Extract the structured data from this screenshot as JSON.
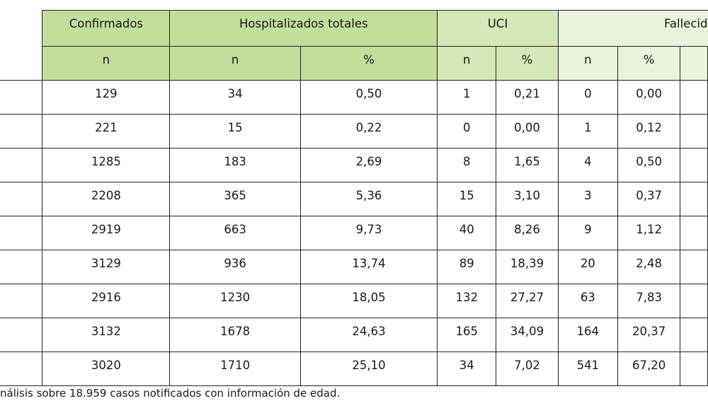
{
  "table": {
    "headers": {
      "confirmados": "Confirmados",
      "hospitalizados": "Hospitalizados totales",
      "uci": "UCI",
      "fallecidos": "Fallecid"
    },
    "subheaders": [
      "n",
      "n",
      "%",
      "n",
      "%",
      "n",
      "%"
    ],
    "rows": [
      [
        "129",
        "34",
        "0,50",
        "1",
        "0,21",
        "0",
        "0,00"
      ],
      [
        "221",
        "15",
        "0,22",
        "0",
        "0,00",
        "1",
        "0,12"
      ],
      [
        "1285",
        "183",
        "2,69",
        "8",
        "1,65",
        "4",
        "0,50"
      ],
      [
        "2208",
        "365",
        "5,36",
        "15",
        "3,10",
        "3",
        "0,37"
      ],
      [
        "2919",
        "663",
        "9,73",
        "40",
        "8,26",
        "9",
        "1,12"
      ],
      [
        "3129",
        "936",
        "13,74",
        "89",
        "18,39",
        "20",
        "2,48"
      ],
      [
        "2916",
        "1230",
        "18,05",
        "132",
        "27,27",
        "63",
        "7,83"
      ],
      [
        "3132",
        "1678",
        "24,63",
        "165",
        "34,09",
        "164",
        "20,37"
      ],
      [
        "3020",
        "1710",
        "25,10",
        "34",
        "7,02",
        "541",
        "67,20"
      ]
    ]
  },
  "footnote": "nálisis sobre 18.959 casos notificados con información de edad."
}
